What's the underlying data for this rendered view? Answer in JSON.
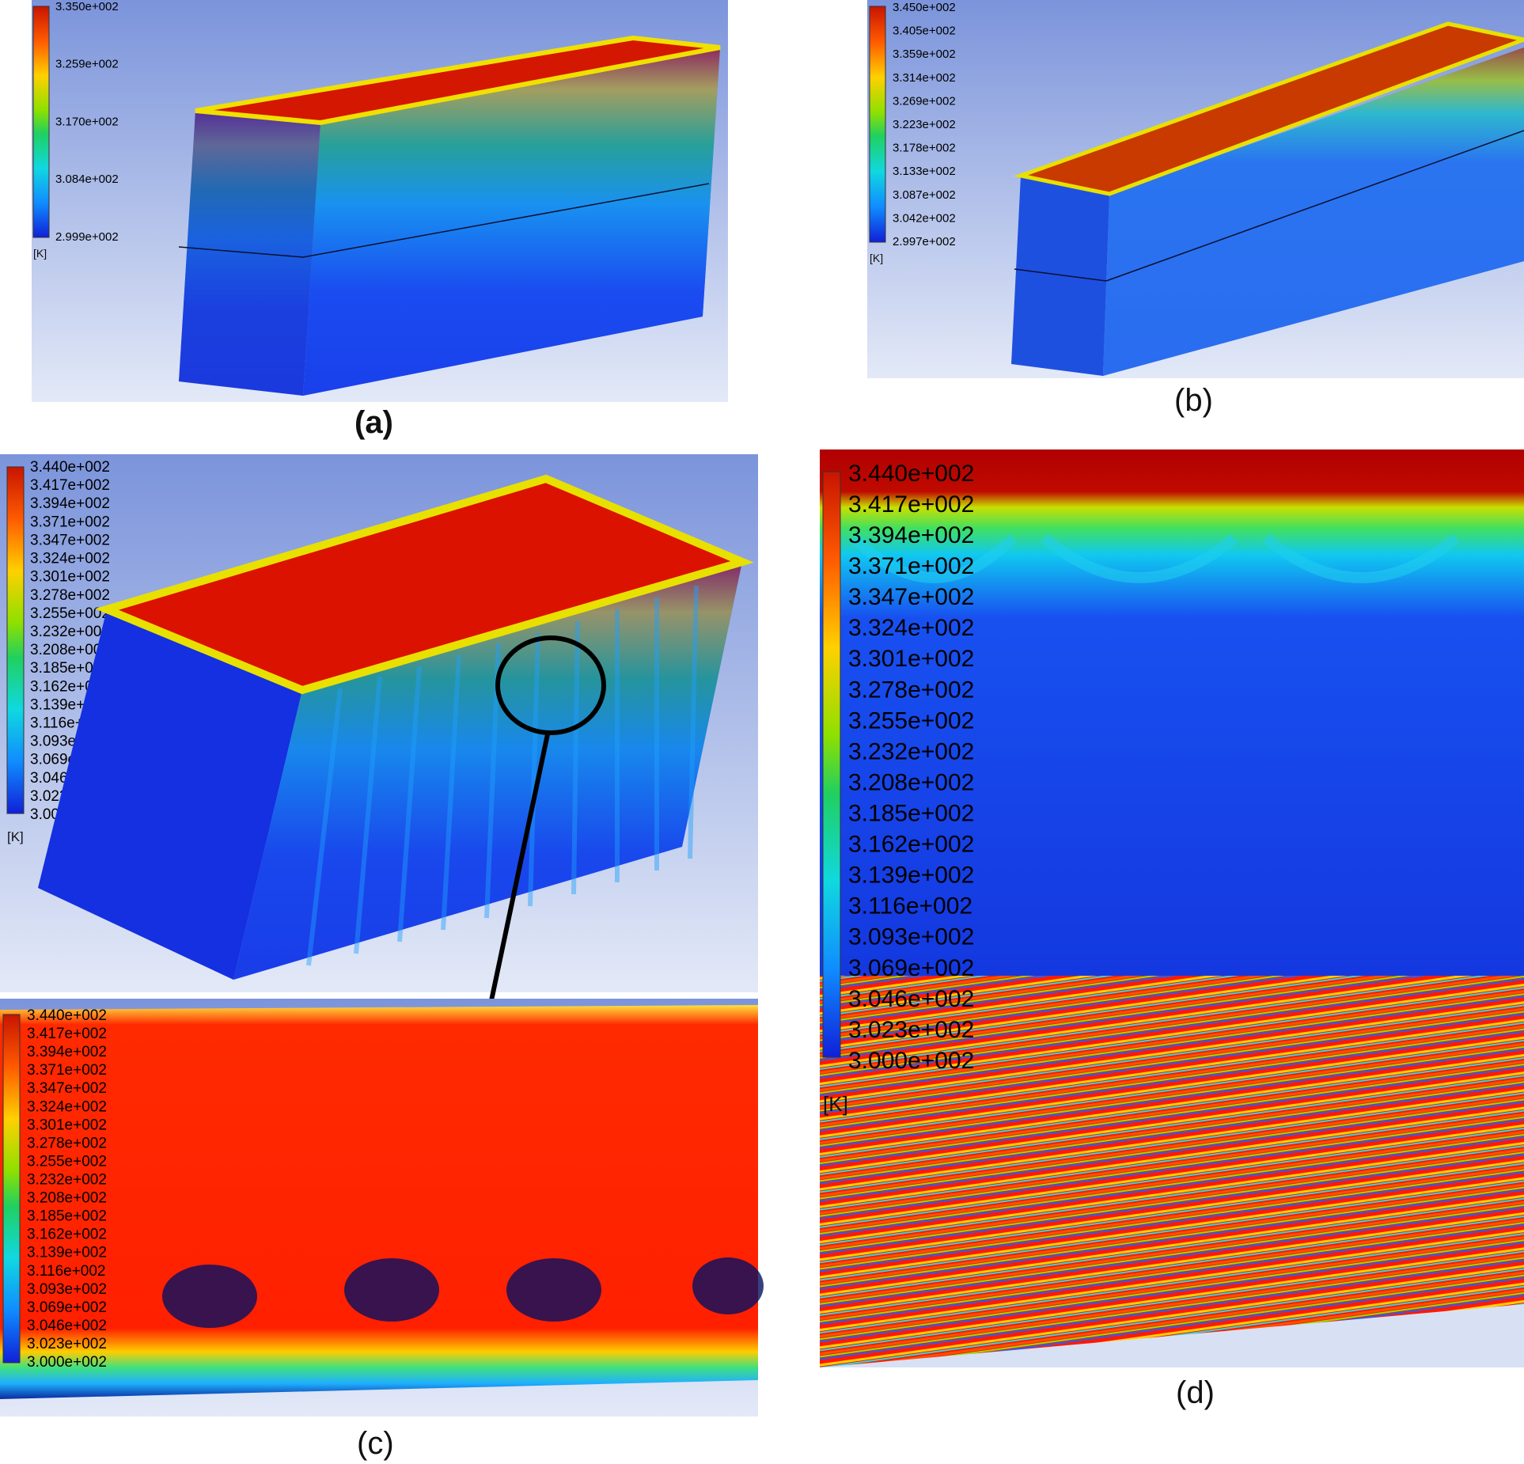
{
  "panels": [
    {
      "id": "a",
      "caption": "(a)",
      "unit": "[K]",
      "ticks": [
        "3.350e+002",
        "3.259e+002",
        "3.170e+002",
        "3.084e+002",
        "2.999e+002"
      ]
    },
    {
      "id": "b",
      "caption": "(b)",
      "unit": "[K]",
      "ticks": [
        "3.450e+002",
        "3.405e+002",
        "3.359e+002",
        "3.314e+002",
        "3.269e+002",
        "3.223e+002",
        "3.178e+002",
        "3.133e+002",
        "3.087e+002",
        "3.042e+002",
        "2.997e+002"
      ]
    },
    {
      "id": "c",
      "caption": "(c)",
      "unit": "[K]",
      "ticks": [
        "3.440e+002",
        "3.417e+002",
        "3.394e+002",
        "3.371e+002",
        "3.347e+002",
        "3.324e+002",
        "3.301e+002",
        "3.278e+002",
        "3.255e+002",
        "3.232e+002",
        "3.208e+002",
        "3.185e+002",
        "3.162e+002",
        "3.139e+002",
        "3.116e+002",
        "3.093e+002",
        "3.069e+002",
        "3.046e+002",
        "3.023e+002",
        "3.000e+002"
      ]
    },
    {
      "id": "d",
      "caption": "(d)",
      "unit": "[K]",
      "ticks": [
        "3.440e+002",
        "3.417e+002",
        "3.394e+002",
        "3.371e+002",
        "3.347e+002",
        "3.324e+002",
        "3.301e+002",
        "3.278e+002",
        "3.255e+002",
        "3.232e+002",
        "3.208e+002",
        "3.185e+002",
        "3.162e+002",
        "3.139e+002",
        "3.116e+002",
        "3.093e+002",
        "3.069e+002",
        "3.046e+002",
        "3.023e+002",
        "3.000e+002"
      ]
    }
  ],
  "colors": {
    "background_top": "#7c96dc",
    "background_bottom": "#dfe6f6",
    "hot": "#e01a00",
    "cold": "#1030e0",
    "deep_cold": "#081c80"
  }
}
